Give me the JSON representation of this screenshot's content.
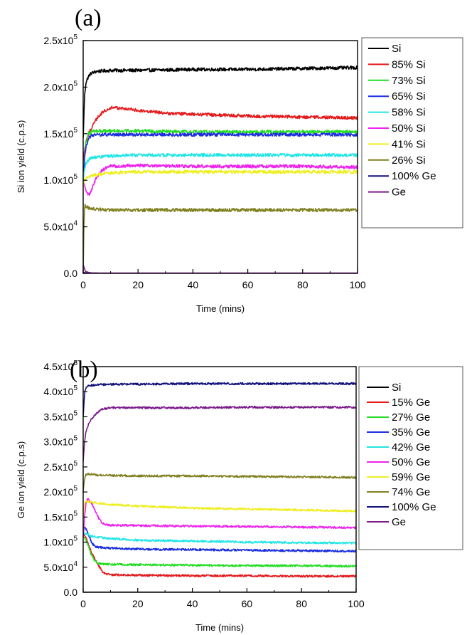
{
  "chart_data": [
    {
      "panel_label": "(a)",
      "type": "line",
      "xlabel": "Time (mins)",
      "ylabel": "Si ion yield (c.p.s)",
      "xlim": [
        0,
        100
      ],
      "ylim": [
        0,
        250000
      ],
      "x_ticks": [
        0,
        20,
        40,
        60,
        80,
        100
      ],
      "x_tick_labels": [
        "0",
        "20",
        "40",
        "60",
        "80",
        "100"
      ],
      "y_ticks": [
        0,
        50000,
        100000,
        150000,
        200000,
        250000
      ],
      "y_tick_labels": [
        {
          "mantissa": "0.0",
          "exp": ""
        },
        {
          "mantissa": "5.0x10",
          "exp": "4"
        },
        {
          "mantissa": "1.0x10",
          "exp": "5"
        },
        {
          "mantissa": "1.5x10",
          "exp": "5"
        },
        {
          "mantissa": "2.0x10",
          "exp": "5"
        },
        {
          "mantissa": "2.5x10",
          "exp": "5"
        }
      ],
      "legend_position": "right",
      "series": [
        {
          "name": "Si",
          "color": "#000000",
          "x": [
            0,
            0.5,
            1,
            2,
            3,
            5,
            10,
            20,
            40,
            60,
            80,
            100
          ],
          "y": [
            145000,
            190000,
            205000,
            212000,
            215000,
            217000,
            218000,
            218000,
            219000,
            219000,
            220000,
            221000
          ]
        },
        {
          "name": "85% Si",
          "color": "#e41a1c",
          "x": [
            0,
            0.5,
            1,
            2,
            4,
            6,
            8,
            10,
            15,
            20,
            30,
            40,
            60,
            80,
            100
          ],
          "y": [
            120000,
            132000,
            140000,
            150000,
            162000,
            170000,
            175000,
            178000,
            177000,
            175000,
            172000,
            171000,
            169000,
            168000,
            167000
          ]
        },
        {
          "name": "73% Si",
          "color": "#22dd22",
          "x": [
            0,
            0.5,
            1,
            2,
            3,
            5,
            10,
            20,
            40,
            60,
            80,
            100
          ],
          "y": [
            100000,
            125000,
            140000,
            150000,
            152000,
            153000,
            153000,
            153000,
            152000,
            152000,
            152000,
            152000
          ]
        },
        {
          "name": "65% Si",
          "color": "#1a2ee0",
          "x": [
            0,
            0.5,
            1,
            2,
            3,
            5,
            10,
            20,
            40,
            60,
            80,
            100
          ],
          "y": [
            100000,
            122000,
            135000,
            145000,
            148000,
            149000,
            149000,
            149000,
            149000,
            149000,
            149000,
            149000
          ]
        },
        {
          "name": "58% Si",
          "color": "#22e5e5",
          "x": [
            0,
            0.5,
            1,
            2,
            3,
            5,
            10,
            20,
            40,
            60,
            80,
            100
          ],
          "y": [
            100000,
            112000,
            118000,
            122000,
            124000,
            125000,
            126000,
            127000,
            127000,
            127000,
            127000,
            127000
          ]
        },
        {
          "name": "50% Si",
          "color": "#ee22ee",
          "x": [
            0,
            0.5,
            1,
            1.5,
            2,
            3,
            4,
            6,
            8,
            10,
            20,
            40,
            60,
            80,
            100
          ],
          "y": [
            100000,
            95000,
            90000,
            86000,
            84000,
            88000,
            98000,
            108000,
            113000,
            115000,
            116000,
            115000,
            115000,
            115000,
            114000
          ]
        },
        {
          "name": "41% Si",
          "color": "#eeee22",
          "x": [
            0,
            0.5,
            1,
            2,
            3,
            5,
            10,
            20,
            40,
            60,
            80,
            100
          ],
          "y": [
            95000,
            100000,
            102000,
            104000,
            105000,
            106000,
            108000,
            109000,
            109000,
            109000,
            109000,
            109000
          ]
        },
        {
          "name": "26% Si",
          "color": "#808020",
          "x": [
            0,
            0.3,
            0.6,
            1,
            2,
            5,
            10,
            20,
            40,
            60,
            80,
            100
          ],
          "y": [
            0,
            55000,
            73000,
            72000,
            70000,
            69000,
            68000,
            68000,
            68000,
            68000,
            68000,
            68000
          ]
        },
        {
          "name": "100% Ge",
          "color": "#10107a",
          "x": [
            0,
            1,
            2,
            5,
            10,
            20,
            40,
            60,
            80,
            100
          ],
          "y": [
            1000,
            500,
            300,
            200,
            200,
            200,
            200,
            200,
            200,
            200
          ]
        },
        {
          "name": "Ge",
          "color": "#7a1a8a",
          "x": [
            0,
            0.5,
            1,
            2,
            3,
            5,
            10,
            20,
            40,
            60,
            80,
            100
          ],
          "y": [
            8000,
            4000,
            2000,
            1000,
            500,
            400,
            300,
            300,
            300,
            300,
            300,
            300
          ]
        }
      ]
    },
    {
      "panel_label": "(b)",
      "type": "line",
      "xlabel": "Time (mins)",
      "ylabel": "Ge ion yield (c.p.s)",
      "xlim": [
        0,
        100
      ],
      "ylim": [
        0,
        450000
      ],
      "x_ticks": [
        0,
        20,
        40,
        60,
        80,
        100
      ],
      "x_tick_labels": [
        "0",
        "20",
        "40",
        "60",
        "80",
        "100"
      ],
      "y_ticks": [
        0,
        50000,
        100000,
        150000,
        200000,
        250000,
        300000,
        350000,
        400000,
        450000
      ],
      "y_tick_labels": [
        {
          "mantissa": "0.0",
          "exp": ""
        },
        {
          "mantissa": "5.0x10",
          "exp": "4"
        },
        {
          "mantissa": "1.0x10",
          "exp": "5"
        },
        {
          "mantissa": "1.5x10",
          "exp": "5"
        },
        {
          "mantissa": "2.0x10",
          "exp": "5"
        },
        {
          "mantissa": "2.5x10",
          "exp": "5"
        },
        {
          "mantissa": "3.0x10",
          "exp": "5"
        },
        {
          "mantissa": "3.5x10",
          "exp": "5"
        },
        {
          "mantissa": "4.0x10",
          "exp": "5"
        },
        {
          "mantissa": "4.5x10",
          "exp": "5"
        }
      ],
      "legend_position": "right",
      "series": [
        {
          "name": "Si",
          "color": "#000000",
          "x": [
            0,
            5,
            20,
            40,
            60,
            80,
            100
          ],
          "y": [
            300,
            300,
            300,
            300,
            300,
            300,
            300
          ]
        },
        {
          "name": "15% Ge",
          "color": "#e41a1c",
          "x": [
            0,
            1,
            2,
            3,
            4,
            5,
            6,
            7,
            8,
            10,
            20,
            40,
            60,
            80,
            100
          ],
          "y": [
            120000,
            110000,
            95000,
            80000,
            70000,
            60000,
            50000,
            42000,
            37000,
            35000,
            34000,
            33000,
            33000,
            32000,
            32000
          ]
        },
        {
          "name": "27% Ge",
          "color": "#22dd22",
          "x": [
            0,
            1,
            2,
            3,
            4,
            5,
            6,
            8,
            10,
            20,
            40,
            60,
            80,
            100
          ],
          "y": [
            110000,
            105000,
            90000,
            75000,
            65000,
            60000,
            57000,
            56000,
            56000,
            55000,
            54000,
            53000,
            53000,
            52000
          ]
        },
        {
          "name": "35% Ge",
          "color": "#1a2ee0",
          "x": [
            0,
            0.5,
            1,
            2,
            3,
            4,
            5,
            10,
            20,
            40,
            60,
            80,
            100
          ],
          "y": [
            120000,
            130000,
            127000,
            115000,
            100000,
            93000,
            90000,
            88000,
            86000,
            85000,
            84000,
            83000,
            82000
          ]
        },
        {
          "name": "42% Ge",
          "color": "#22e5e5",
          "x": [
            0,
            1,
            2,
            3,
            5,
            10,
            20,
            40,
            60,
            80,
            100
          ],
          "y": [
            120000,
            117000,
            115000,
            112000,
            110000,
            107000,
            104000,
            102000,
            100000,
            99000,
            98000
          ]
        },
        {
          "name": "50% Ge",
          "color": "#ee22ee",
          "x": [
            0,
            0.5,
            1,
            1.5,
            2,
            3,
            4,
            5,
            6,
            7,
            8,
            10,
            20,
            40,
            60,
            80,
            100
          ],
          "y": [
            110000,
            150000,
            175000,
            185000,
            185000,
            178000,
            168000,
            155000,
            145000,
            138000,
            135000,
            134000,
            133000,
            132000,
            131000,
            130000,
            129000
          ]
        },
        {
          "name": "59% Ge",
          "color": "#eeee22",
          "x": [
            0,
            0.5,
            1,
            2,
            5,
            10,
            20,
            40,
            60,
            80,
            100
          ],
          "y": [
            150000,
            178000,
            182000,
            180000,
            178000,
            175000,
            172000,
            168000,
            166000,
            164000,
            162000
          ]
        },
        {
          "name": "74% Ge",
          "color": "#808020",
          "x": [
            0,
            0.5,
            1,
            2,
            5,
            10,
            20,
            40,
            60,
            80,
            100
          ],
          "y": [
            200000,
            225000,
            235000,
            236000,
            234000,
            233000,
            232000,
            232000,
            231000,
            230000,
            229000
          ]
        },
        {
          "name": "100% Ge",
          "color": "#10107a",
          "x": [
            0,
            0.5,
            1,
            2,
            5,
            10,
            20,
            40,
            60,
            80,
            100
          ],
          "y": [
            350000,
            395000,
            408000,
            412000,
            414000,
            415000,
            415000,
            416000,
            416000,
            416000,
            416000
          ]
        },
        {
          "name": "Ge",
          "color": "#7a1a8a",
          "x": [
            0,
            0.5,
            1,
            2,
            3,
            5,
            7,
            10,
            20,
            40,
            60,
            80,
            100
          ],
          "y": [
            260000,
            300000,
            320000,
            335000,
            345000,
            358000,
            365000,
            368000,
            368000,
            368000,
            369000,
            369000,
            369000
          ]
        }
      ]
    }
  ]
}
